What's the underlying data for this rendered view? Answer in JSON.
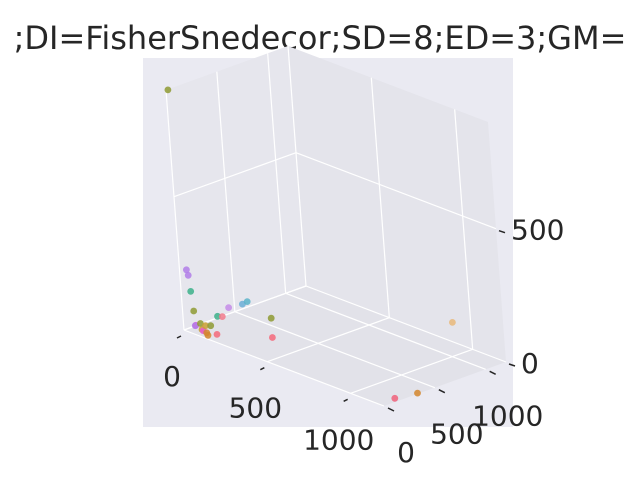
{
  "chart_data": {
    "type": "scatter3d",
    "title": ";DI=FisherSnedecor;SD=8;ED=3;GM=",
    "xlabel": "",
    "ylabel": "",
    "zlabel": "",
    "xlim": [
      0,
      1200
    ],
    "ylim": [
      0,
      1200
    ],
    "zlim": [
      0,
      900
    ],
    "x_ticks": [
      {
        "value": 0,
        "label": "0"
      },
      {
        "value": 500,
        "label": "500"
      },
      {
        "value": 1000,
        "label": "1000"
      }
    ],
    "y_ticks": [
      {
        "value": 0,
        "label": "0"
      },
      {
        "value": 500,
        "label": "500"
      },
      {
        "value": 1000,
        "label": "1000"
      }
    ],
    "z_ticks": [
      {
        "value": 0,
        "label": "0"
      },
      {
        "value": 500,
        "label": "500"
      }
    ],
    "grid": true,
    "points": [
      {
        "x": 5,
        "y": 10,
        "z": 900,
        "color": "#8e9a32"
      },
      {
        "x": 900,
        "y": 1180,
        "z": 80,
        "color": "#e9b87a"
      },
      {
        "x": 30,
        "y": 20,
        "z": 230,
        "color": "#b07de8"
      },
      {
        "x": 35,
        "y": 25,
        "z": 210,
        "color": "#b07de8"
      },
      {
        "x": 40,
        "y": 30,
        "z": 150,
        "color": "#3cb08a"
      },
      {
        "x": 30,
        "y": 60,
        "z": 70,
        "color": "#8e9a32"
      },
      {
        "x": 30,
        "y": 70,
        "z": 15,
        "color": "#e85ad2"
      },
      {
        "x": 20,
        "y": 80,
        "z": 10,
        "color": "#b07de8"
      },
      {
        "x": 40,
        "y": 100,
        "z": 20,
        "color": "#8e9a32"
      },
      {
        "x": 60,
        "y": 80,
        "z": 5,
        "color": "#c9a034"
      },
      {
        "x": 80,
        "y": 60,
        "z": 8,
        "color": "#e85ad2"
      },
      {
        "x": 50,
        "y": 130,
        "z": 10,
        "color": "#c9a034"
      },
      {
        "x": 100,
        "y": 60,
        "z": 5,
        "color": "#d3862d"
      },
      {
        "x": 120,
        "y": 40,
        "z": 3,
        "color": "#d3862d"
      },
      {
        "x": 70,
        "y": 150,
        "z": 12,
        "color": "#8e9a32"
      },
      {
        "x": 150,
        "y": 80,
        "z": 8,
        "color": "#f5687a"
      },
      {
        "x": 20,
        "y": 300,
        "z": 15,
        "color": "#3cb08a"
      },
      {
        "x": 30,
        "y": 330,
        "z": 12,
        "color": "#f27a8c"
      },
      {
        "x": 15,
        "y": 420,
        "z": 30,
        "color": "#c48be8"
      },
      {
        "x": 5,
        "y": 570,
        "z": 20,
        "color": "#6baed6"
      },
      {
        "x": 10,
        "y": 610,
        "z": 25,
        "color": "#5bb3c9"
      },
      {
        "x": 330,
        "y": 330,
        "z": 5,
        "color": "#f5687a"
      },
      {
        "x": 170,
        "y": 580,
        "z": 5,
        "color": "#8e9a32"
      },
      {
        "x": 1180,
        "y": 140,
        "z": 5,
        "color": "#f0607a"
      },
      {
        "x": 1200,
        "y": 330,
        "z": 3,
        "color": "#d3862d"
      }
    ]
  }
}
